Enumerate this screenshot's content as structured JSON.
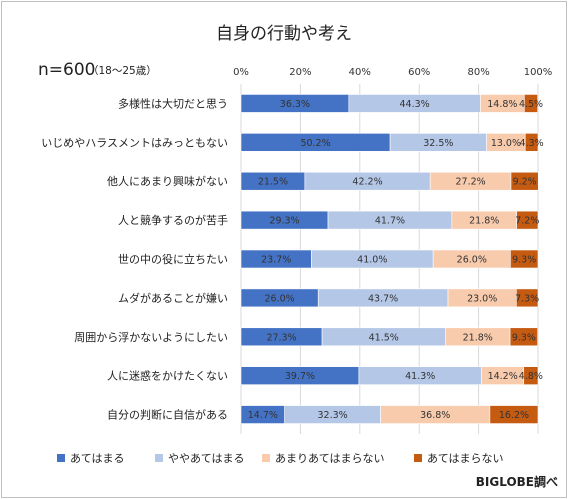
{
  "chart_data": {
    "type": "bar",
    "orientation": "horizontal",
    "stacked": "percent",
    "title": "自身の行動や考え",
    "sample_size_label": "n=600",
    "sample_size_note": "（18〜25歳）",
    "xlim": [
      0,
      100
    ],
    "x_ticks": [
      "0%",
      "20%",
      "40%",
      "60%",
      "80%",
      "100%"
    ],
    "grid": true,
    "legend_position": "bottom",
    "categories": [
      "多様性は大切だと思う",
      "いじめやハラスメントはみっともない",
      "他人にあまり興味がない",
      "人と競争するのが苦手",
      "世の中の役に立ちたい",
      "ムダがあることが嫌い",
      "周囲から浮かないようにしたい",
      "人に迷惑をかけたくない",
      "自分の判断に自信がある"
    ],
    "series": [
      {
        "name": "あてはまる",
        "color": "#4472c4",
        "values": [
          36.3,
          50.2,
          21.5,
          29.3,
          23.7,
          26.0,
          27.3,
          39.7,
          14.7
        ]
      },
      {
        "name": "ややあてはまる",
        "color": "#b4c7e7",
        "values": [
          44.3,
          32.5,
          42.2,
          41.7,
          41.0,
          43.7,
          41.5,
          41.3,
          32.3
        ]
      },
      {
        "name": "あまりあてはまらない",
        "color": "#f8cbad",
        "values": [
          14.8,
          13.0,
          27.2,
          21.8,
          26.0,
          23.0,
          21.8,
          14.2,
          36.8
        ]
      },
      {
        "name": "あてはまらない",
        "color": "#c55a11",
        "values": [
          4.5,
          4.3,
          9.2,
          7.2,
          9.3,
          7.3,
          9.3,
          4.8,
          16.2
        ]
      }
    ],
    "value_labels": [
      [
        "36.3%",
        "44.3%",
        "14.8%",
        "4.5%"
      ],
      [
        "50.2%",
        "32.5%",
        "13.0%",
        "4.3%"
      ],
      [
        "21.5%",
        "42.2%",
        "27.2%",
        "9.2%"
      ],
      [
        "29.3%",
        "41.7%",
        "21.8%",
        "7.2%"
      ],
      [
        "23.7%",
        "41.0%",
        "26.0%",
        "9.3%"
      ],
      [
        "26.0%",
        "43.7%",
        "23.0%",
        "7.3%"
      ],
      [
        "27.3%",
        "41.5%",
        "21.8%",
        "9.3%"
      ],
      [
        "39.7%",
        "41.3%",
        "14.2%",
        "4.8%"
      ],
      [
        "14.7%",
        "32.3%",
        "36.8%",
        "16.2%"
      ]
    ],
    "credit": "BIGLOBE調べ"
  }
}
